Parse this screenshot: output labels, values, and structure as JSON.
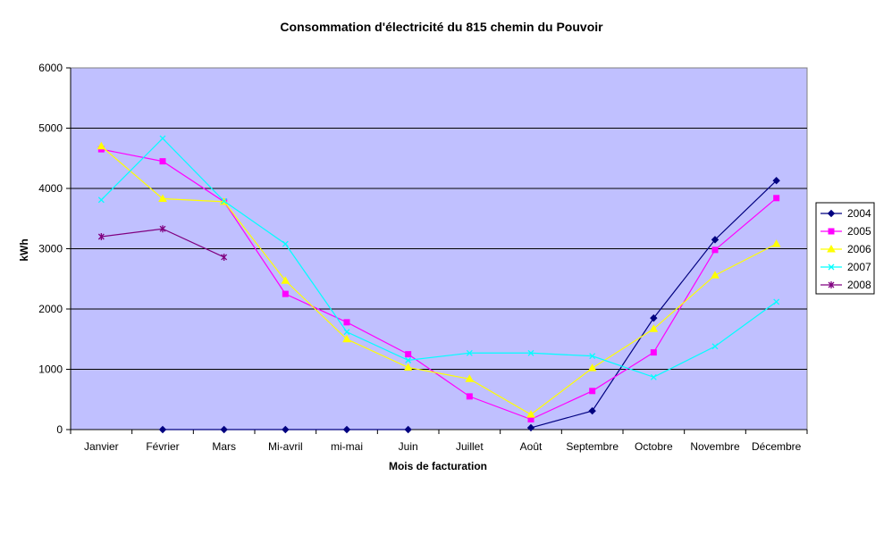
{
  "chart_data": {
    "type": "line",
    "title": "Consommation d'électricité du 815 chemin du Pouvoir",
    "xlabel": "Mois de facturation",
    "ylabel": "kWh",
    "ylim": [
      0,
      6000
    ],
    "yticks": [
      0,
      1000,
      2000,
      3000,
      4000,
      5000,
      6000
    ],
    "grid": true,
    "legend_position": "right",
    "plot_background": "#c0c0ff",
    "categories": [
      "Janvier",
      "Février",
      "Mars",
      "Mi-avril",
      "mi-mai",
      "Juin",
      "Juillet",
      "Août",
      "Septembre",
      "Octobre",
      "Novembre",
      "Décembre"
    ],
    "series": [
      {
        "name": "2004",
        "color": "#000080",
        "marker": "diamond",
        "values": [
          null,
          0,
          0,
          0,
          0,
          0,
          null,
          30,
          310,
          1850,
          3150,
          4130
        ]
      },
      {
        "name": "2005",
        "color": "#ff00ff",
        "marker": "square",
        "values": [
          4650,
          4450,
          3780,
          2250,
          1780,
          1250,
          550,
          170,
          640,
          1280,
          2980,
          3840
        ]
      },
      {
        "name": "2006",
        "color": "#ffff00",
        "marker": "triangle",
        "values": [
          4700,
          3830,
          3780,
          2470,
          1500,
          1030,
          840,
          250,
          1020,
          1670,
          2560,
          3080
        ]
      },
      {
        "name": "2007",
        "color": "#00ffff",
        "marker": "x",
        "values": [
          3810,
          4830,
          3790,
          3080,
          1620,
          1150,
          1270,
          1270,
          1220,
          870,
          1380,
          2120
        ]
      },
      {
        "name": "2008",
        "color": "#800080",
        "marker": "star",
        "values": [
          3200,
          3330,
          2860,
          null,
          null,
          null,
          null,
          null,
          null,
          null,
          null,
          null
        ]
      }
    ]
  }
}
